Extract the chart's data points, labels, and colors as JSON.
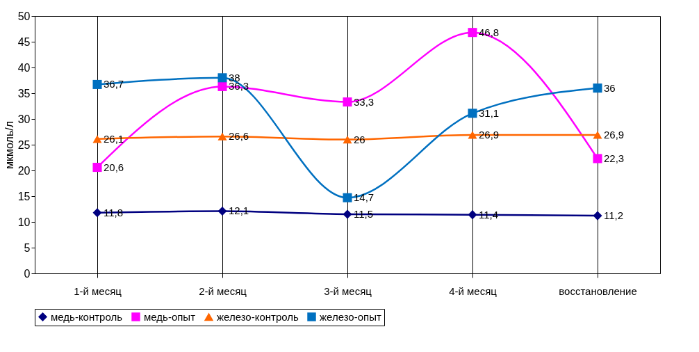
{
  "chart_data": {
    "type": "line",
    "ylabel": "мкмоль/л",
    "categories": [
      "1-й месяц",
      "2-й месяц",
      "3-й месяц",
      "4-й месяц",
      "восстановление"
    ],
    "ylim": [
      0,
      50
    ],
    "yticks": [
      0,
      5,
      10,
      15,
      20,
      25,
      30,
      35,
      40,
      45,
      50
    ],
    "grid": "x",
    "legend": "bottom",
    "line_style": "solid",
    "series": [
      {
        "name": "медь-контроль",
        "color": "#000080",
        "marker": "diamond",
        "values": [
          11.8,
          12.1,
          11.5,
          11.4,
          11.2
        ],
        "value_labels": [
          "11,8",
          "12,1",
          "11,5",
          "11,4",
          "11,2"
        ]
      },
      {
        "name": "медь-опыт",
        "color": "#ff00ff",
        "marker": "square",
        "values": [
          20.6,
          36.3,
          33.3,
          46.8,
          22.3
        ],
        "value_labels": [
          "20,6",
          "36,3",
          "33,3",
          "46,8",
          "22,3"
        ]
      },
      {
        "name": "железо-контроль",
        "color": "#ff6600",
        "marker": "triangle",
        "values": [
          26.1,
          26.6,
          26,
          26.9,
          26.9
        ],
        "value_labels": [
          "26,1",
          "26,6",
          "26",
          "26,9",
          "26,9"
        ]
      },
      {
        "name": "железо-опыт",
        "color": "#0070c0",
        "marker": "square",
        "values": [
          36.7,
          38,
          14.7,
          31.1,
          36
        ],
        "value_labels": [
          "36,7",
          "38",
          "14,7",
          "31,1",
          "36"
        ]
      }
    ]
  }
}
